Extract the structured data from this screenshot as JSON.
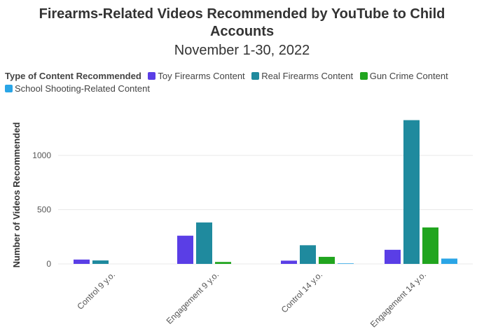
{
  "chart_data": {
    "type": "bar",
    "title_line1": "Firearms-Related Videos Recommended by YouTube to Child",
    "title_line2": "Accounts",
    "subtitle": "November 1-30, 2022",
    "legend_title": "Type of Content Recommended",
    "legend_placement": "top-left",
    "ylabel": "Number of Videos Recommended",
    "xlabel": "",
    "ylim": [
      0,
      1400
    ],
    "yticks": [
      0,
      500,
      1000
    ],
    "grid": true,
    "categories": [
      "Control 9 y.o.",
      "Engagement 9 y.o.",
      "Control 14 y.o.",
      "Engagement 14 y.o."
    ],
    "series": [
      {
        "name": "Toy Firearms Content",
        "color": "#5a3ee6",
        "values": [
          40,
          260,
          30,
          130
        ]
      },
      {
        "name": "Real Firearms Content",
        "color": "#1f8a9e",
        "values": [
          32,
          382,
          172,
          1325
        ]
      },
      {
        "name": "Gun Crime Content",
        "color": "#21a51f",
        "values": [
          0,
          18,
          65,
          336
        ]
      },
      {
        "name": "School Shooting-Related Content",
        "color": "#2aa5e6",
        "values": [
          0,
          0,
          5,
          49
        ]
      }
    ]
  }
}
